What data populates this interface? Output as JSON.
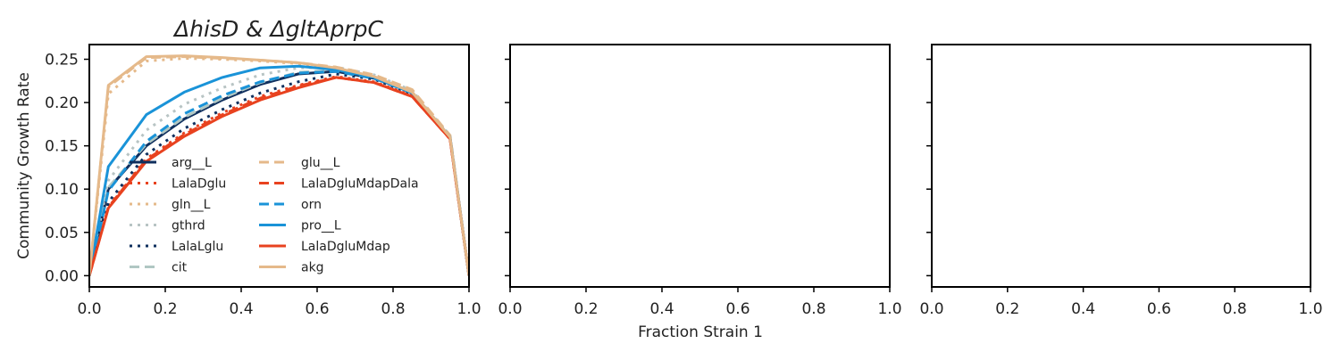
{
  "figure": {
    "xlabel": "Fraction Strain 1",
    "ylabel": "Community Growth Rate"
  },
  "chart_data": [
    {
      "type": "line",
      "title": "ΔhisD & ΔgltAprpC",
      "xlim": [
        0.0,
        1.0
      ],
      "ylim": [
        -0.013,
        0.267
      ],
      "x_ticks": [
        "0.0",
        "0.2",
        "0.4",
        "0.6",
        "0.8",
        "1.0"
      ],
      "y_ticks": [
        "0.00",
        "0.05",
        "0.10",
        "0.15",
        "0.20",
        "0.25"
      ],
      "y_tick_values": [
        0,
        0.05,
        0.1,
        0.15,
        0.2,
        0.25
      ],
      "x": [
        0.0,
        0.05,
        0.15,
        0.25,
        0.35,
        0.45,
        0.55,
        0.65,
        0.75,
        0.85,
        0.95,
        1.0
      ],
      "grid": false,
      "legend_position": "lower-center",
      "series": [
        {
          "name": "arg__L",
          "color": "#0f2f5e",
          "dash": "solid",
          "values": [
            0,
            0.1,
            0.15,
            0.181,
            0.203,
            0.221,
            0.233,
            0.236,
            0.228,
            0.212,
            0.16,
            0
          ]
        },
        {
          "name": "LalaDglu",
          "color": "#e8421f",
          "dash": "dot",
          "values": [
            0,
            0.08,
            0.135,
            0.165,
            0.188,
            0.207,
            0.22,
            0.23,
            0.224,
            0.208,
            0.158,
            0
          ]
        },
        {
          "name": "gln__L",
          "color": "#e5b98a",
          "dash": "dot",
          "values": [
            0,
            0.21,
            0.248,
            0.251,
            0.25,
            0.248,
            0.245,
            0.24,
            0.23,
            0.212,
            0.16,
            0
          ]
        },
        {
          "name": "gthrd",
          "color": "#b8c4c4",
          "dash": "dot",
          "values": [
            0,
            0.11,
            0.168,
            0.198,
            0.217,
            0.232,
            0.24,
            0.241,
            0.232,
            0.214,
            0.161,
            0
          ]
        },
        {
          "name": "LalaLglu",
          "color": "#0f2f5e",
          "dash": "dot",
          "values": [
            0,
            0.085,
            0.14,
            0.17,
            0.192,
            0.211,
            0.224,
            0.233,
            0.227,
            0.21,
            0.159,
            0
          ]
        },
        {
          "name": "cit",
          "color": "#b0c7c3",
          "dash": "dash",
          "values": [
            0,
            0.102,
            0.152,
            0.183,
            0.205,
            0.223,
            0.235,
            0.237,
            0.23,
            0.213,
            0.162,
            0
          ]
        },
        {
          "name": "glu__L",
          "color": "#e5b98a",
          "dash": "dash",
          "values": [
            0,
            0.218,
            0.252,
            0.253,
            0.251,
            0.249,
            0.246,
            0.241,
            0.232,
            0.215,
            0.162,
            0
          ]
        },
        {
          "name": "LalaDgluMdapDala",
          "color": "#e8421f",
          "dash": "dash",
          "values": [
            0,
            0.079,
            0.134,
            0.163,
            0.186,
            0.205,
            0.219,
            0.229,
            0.223,
            0.207,
            0.158,
            0
          ]
        },
        {
          "name": "orn",
          "color": "#1a93d8",
          "dash": "dash",
          "values": [
            0,
            0.098,
            0.155,
            0.187,
            0.208,
            0.224,
            0.234,
            0.236,
            0.228,
            0.211,
            0.16,
            0
          ]
        },
        {
          "name": "pro__L",
          "color": "#1a93d8",
          "dash": "solid",
          "values": [
            0,
            0.126,
            0.186,
            0.212,
            0.229,
            0.24,
            0.242,
            0.238,
            0.229,
            0.211,
            0.16,
            0
          ]
        },
        {
          "name": "LalaDgluMdap",
          "color": "#e8421f",
          "dash": "solid",
          "values": [
            0,
            0.078,
            0.132,
            0.161,
            0.184,
            0.203,
            0.217,
            0.229,
            0.223,
            0.207,
            0.158,
            0
          ]
        },
        {
          "name": "akg",
          "color": "#e5b98a",
          "dash": "solid",
          "values": [
            0,
            0.22,
            0.253,
            0.254,
            0.252,
            0.249,
            0.246,
            0.24,
            0.23,
            0.212,
            0.16,
            0
          ]
        }
      ]
    },
    {
      "type": "line",
      "title": "",
      "xlim": [
        0.0,
        1.0
      ],
      "ylim": [
        -0.013,
        0.267
      ],
      "x_ticks": [
        "0.0",
        "0.2",
        "0.4",
        "0.6",
        "0.8",
        "1.0"
      ],
      "y_tick_values": [
        0,
        0.05,
        0.1,
        0.15,
        0.2,
        0.25
      ],
      "series": []
    },
    {
      "type": "line",
      "title": "",
      "xlim": [
        0.0,
        1.0
      ],
      "ylim": [
        -0.013,
        0.267
      ],
      "x_ticks": [
        "0.0",
        "0.2",
        "0.4",
        "0.6",
        "0.8",
        "1.0"
      ],
      "y_tick_values": [
        0,
        0.05,
        0.1,
        0.15,
        0.2,
        0.25
      ],
      "series": []
    }
  ]
}
